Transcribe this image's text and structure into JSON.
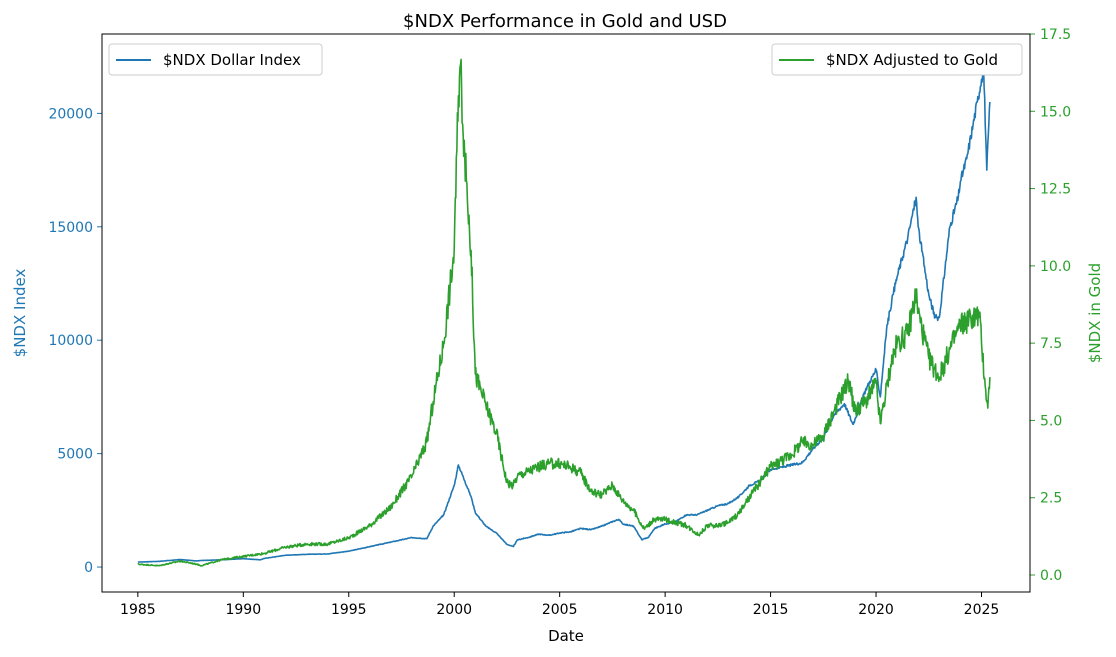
{
  "chart_data": {
    "type": "line",
    "title": "$NDX Performance in Gold and USD",
    "xlabel": "Date",
    "ylabel_left": "$NDX Index",
    "ylabel_right": "$NDX in Gold",
    "xlim": [
      1983.3,
      2027.3
    ],
    "ylim_left": [
      -1100,
      23500
    ],
    "ylim_right": [
      -0.55,
      17.5
    ],
    "x_ticks": [
      1985,
      1990,
      1995,
      2000,
      2005,
      2010,
      2015,
      2020,
      2025
    ],
    "y_left_ticks": [
      0,
      5000,
      10000,
      15000,
      20000
    ],
    "y_right_ticks": [
      "0.0",
      "2.5",
      "5.0",
      "7.5",
      "10.0",
      "12.5",
      "15.0",
      "17.5"
    ],
    "legend_left": {
      "position": "top-left"
    },
    "legend_right": {
      "position": "top-right"
    },
    "colors": {
      "usd": "#1f77b4",
      "gold": "#2ca02c",
      "axis": "#000000"
    },
    "series": [
      {
        "name": "$NDX Dollar Index",
        "axis": "left",
        "x": [
          1985.0,
          1986.0,
          1987.0,
          1987.8,
          1988.0,
          1989.0,
          1990.0,
          1990.8,
          1991.0,
          1992.0,
          1993.0,
          1994.0,
          1995.0,
          1996.0,
          1997.0,
          1998.0,
          1998.7,
          1999.0,
          1999.5,
          2000.0,
          2000.2,
          2000.5,
          2000.8,
          2001.0,
          2001.5,
          2002.0,
          2002.5,
          2002.8,
          2003.0,
          2003.5,
          2004.0,
          2004.5,
          2005.0,
          2005.5,
          2006.0,
          2006.5,
          2007.0,
          2007.5,
          2007.8,
          2008.0,
          2008.5,
          2008.9,
          2009.0,
          2009.2,
          2009.5,
          2010.0,
          2010.5,
          2011.0,
          2011.5,
          2012.0,
          2012.5,
          2013.0,
          2013.5,
          2014.0,
          2014.5,
          2015.0,
          2015.5,
          2016.0,
          2016.5,
          2017.0,
          2017.5,
          2018.0,
          2018.5,
          2018.9,
          2019.0,
          2019.5,
          2020.0,
          2020.2,
          2020.5,
          2020.8,
          2021.0,
          2021.5,
          2021.9,
          2022.0,
          2022.5,
          2022.8,
          2023.0,
          2023.5,
          2023.9,
          2024.0,
          2024.3,
          2024.6,
          2024.8,
          2025.0,
          2025.1,
          2025.25,
          2025.4
        ],
        "values": [
          220,
          250,
          330,
          270,
          290,
          320,
          370,
          320,
          380,
          520,
          560,
          580,
          700,
          900,
          1100,
          1300,
          1250,
          1800,
          2300,
          3600,
          4500,
          3800,
          3100,
          2400,
          1800,
          1500,
          1000,
          900,
          1200,
          1300,
          1450,
          1400,
          1500,
          1550,
          1700,
          1650,
          1800,
          2000,
          2100,
          1900,
          1800,
          1200,
          1250,
          1300,
          1700,
          1900,
          2000,
          2300,
          2300,
          2500,
          2700,
          2800,
          3100,
          3600,
          3800,
          4300,
          4400,
          4500,
          4600,
          5200,
          5700,
          6700,
          7200,
          6300,
          6500,
          7800,
          8700,
          7500,
          10500,
          12000,
          12800,
          14500,
          16300,
          15000,
          12000,
          11000,
          11000,
          15000,
          16300,
          17000,
          18000,
          19500,
          20500,
          21500,
          22000,
          17500,
          20500
        ]
      },
      {
        "name": "$NDX Adjusted to Gold",
        "axis": "right",
        "x": [
          1985.0,
          1986.0,
          1987.0,
          1987.8,
          1988.0,
          1989.0,
          1990.0,
          1991.0,
          1992.0,
          1993.0,
          1994.0,
          1995.0,
          1996.0,
          1997.0,
          1998.0,
          1998.7,
          1999.0,
          1999.5,
          2000.0,
          2000.2,
          2000.3,
          2000.5,
          2000.8,
          2001.0,
          2001.5,
          2002.0,
          2002.5,
          2002.8,
          2003.0,
          2004.0,
          2004.5,
          2005.0,
          2005.5,
          2006.0,
          2006.5,
          2007.0,
          2007.5,
          2008.0,
          2008.5,
          2008.9,
          2009.0,
          2009.5,
          2010.0,
          2010.5,
          2011.0,
          2011.6,
          2012.0,
          2012.5,
          2013.0,
          2013.5,
          2014.0,
          2015.0,
          2016.0,
          2016.5,
          2017.0,
          2017.5,
          2018.0,
          2018.7,
          2019.0,
          2019.5,
          2020.0,
          2020.2,
          2020.7,
          2021.0,
          2021.5,
          2021.9,
          2022.0,
          2022.5,
          2023.0,
          2023.5,
          2024.0,
          2024.5,
          2024.9,
          2025.0,
          2025.2,
          2025.3,
          2025.4
        ],
        "values": [
          0.35,
          0.3,
          0.45,
          0.35,
          0.3,
          0.5,
          0.6,
          0.7,
          0.9,
          1.0,
          1.0,
          1.2,
          1.6,
          2.2,
          3.2,
          4.3,
          5.6,
          7.5,
          10.5,
          15.5,
          16.5,
          13.5,
          10.5,
          6.5,
          5.5,
          4.6,
          3.0,
          2.9,
          3.2,
          3.5,
          3.6,
          3.6,
          3.5,
          3.3,
          2.7,
          2.6,
          2.9,
          2.4,
          2.1,
          1.6,
          1.5,
          1.8,
          1.8,
          1.7,
          1.6,
          1.3,
          1.6,
          1.6,
          1.7,
          2.0,
          2.5,
          3.5,
          3.9,
          4.3,
          4.2,
          4.5,
          5.3,
          6.3,
          5.3,
          5.6,
          6.2,
          4.9,
          6.8,
          7.5,
          7.8,
          9.1,
          8.5,
          7.0,
          6.4,
          7.3,
          8.1,
          8.3,
          8.4,
          7.5,
          6.0,
          5.4,
          6.4
        ]
      }
    ]
  }
}
